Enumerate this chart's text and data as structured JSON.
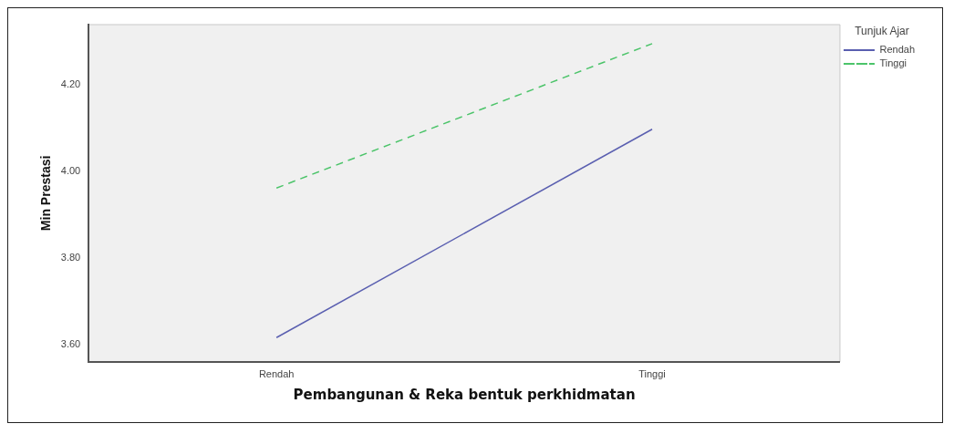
{
  "chart_data": {
    "type": "line",
    "xlabel": "Pembangunan & Reka bentuk perkhidmatan",
    "ylabel": "Min Prestasi",
    "legend_title": "Tunjuk Ajar",
    "legend": "top right",
    "grid": false,
    "marker": "none",
    "categories": [
      "Rendah",
      "Tinggi"
    ],
    "ylim": [
      3.56,
      4.34
    ],
    "yticks": [
      {
        "value": 3.6,
        "label": "3.60"
      },
      {
        "value": 3.8,
        "label": "3.80"
      },
      {
        "value": 4.0,
        "label": "4.00"
      },
      {
        "value": 4.2,
        "label": "4.20"
      }
    ],
    "series": [
      {
        "name": "Rendah",
        "color": "#5a5fb0",
        "values": [
          3.616,
          4.098
        ],
        "line_style": "solid"
      },
      {
        "name": "Tinggi",
        "color": "#4cc46a",
        "values": [
          3.962,
          4.296
        ],
        "line_style": "dashed"
      }
    ]
  }
}
